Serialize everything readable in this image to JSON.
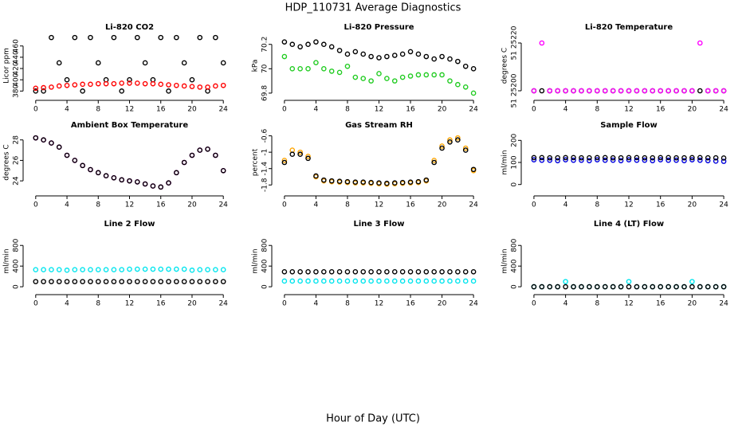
{
  "title": "HDP_110731  Average Diagnostics",
  "xlabel": "Hour of Day (UTC)",
  "chart_data": [
    {
      "type": "scatter",
      "title": "Li-820 CO2",
      "ylabel": "Licor ppm",
      "x": [
        0,
        1,
        2,
        3,
        4,
        5,
        6,
        7,
        8,
        9,
        10,
        11,
        12,
        13,
        14,
        15,
        16,
        17,
        18,
        19,
        20,
        21,
        22,
        23,
        24
      ],
      "xlim": [
        -1,
        25
      ],
      "xticks": [
        0,
        4,
        8,
        12,
        16,
        20,
        24
      ],
      "ylim": [
        372,
        478
      ],
      "yticks": [
        380,
        400,
        420,
        440,
        460
      ],
      "series": [
        {
          "color": "#000000",
          "values": [
            380,
            380,
            475,
            430,
            400,
            475,
            380,
            475,
            430,
            400,
            475,
            380,
            400,
            475,
            430,
            400,
            475,
            380,
            475,
            430,
            400,
            475,
            380,
            475,
            430
          ]
        },
        {
          "color": "#ff0000",
          "values": [
            385,
            386,
            387,
            389,
            390,
            391,
            392,
            392,
            393,
            393,
            393,
            394,
            394,
            394,
            393,
            393,
            392,
            391,
            390,
            389,
            388,
            387,
            387,
            389,
            390
          ]
        }
      ]
    },
    {
      "type": "scatter",
      "title": "Li-820 Pressure",
      "ylabel": "kPa",
      "x": [
        0,
        1,
        2,
        3,
        4,
        5,
        6,
        7,
        8,
        9,
        10,
        11,
        12,
        13,
        14,
        15,
        16,
        17,
        18,
        19,
        20,
        21,
        22,
        23,
        24
      ],
      "xlim": [
        -1,
        25
      ],
      "xticks": [
        0,
        4,
        8,
        12,
        16,
        20,
        24
      ],
      "ylim": [
        69.78,
        70.27
      ],
      "yticks": [
        69.8,
        70.0,
        70.2
      ],
      "series": [
        {
          "color": "#000000",
          "values": [
            70.22,
            70.2,
            70.18,
            70.2,
            70.22,
            70.2,
            70.18,
            70.15,
            70.12,
            70.14,
            70.12,
            70.1,
            70.09,
            70.1,
            70.11,
            70.12,
            70.14,
            70.12,
            70.1,
            70.08,
            70.1,
            70.08,
            70.06,
            70.02,
            70.0
          ]
        },
        {
          "color": "#22cc22",
          "values": [
            70.1,
            70.0,
            70.0,
            70.0,
            70.05,
            70.0,
            69.98,
            69.97,
            70.02,
            69.93,
            69.92,
            69.9,
            69.96,
            69.92,
            69.9,
            69.93,
            69.94,
            69.95,
            69.95,
            69.95,
            69.95,
            69.9,
            69.87,
            69.85,
            69.8
          ]
        }
      ]
    },
    {
      "type": "scatter",
      "title": "Li-820 Temperature",
      "ylabel": "degrees C",
      "x": [
        0,
        1,
        2,
        3,
        4,
        5,
        6,
        7,
        8,
        9,
        10,
        11,
        12,
        13,
        14,
        15,
        16,
        17,
        18,
        19,
        20,
        21,
        22,
        23,
        24
      ],
      "xlim": [
        -1,
        25
      ],
      "xticks": [
        0,
        4,
        8,
        12,
        16,
        20,
        24
      ],
      "ylim": [
        51.25198,
        51.25223
      ],
      "yticks": [
        {
          "value": 51.252,
          "label": "51 25200"
        },
        {
          "value": 51.2522,
          "label": "51 25220"
        }
      ],
      "series": [
        {
          "color": "#000000",
          "values": [
            51.252,
            51.252,
            51.252,
            51.252,
            51.252,
            51.252,
            51.252,
            51.252,
            51.252,
            51.252,
            51.252,
            51.252,
            51.252,
            51.252,
            51.252,
            51.252,
            51.252,
            51.252,
            51.252,
            51.252,
            51.252,
            51.252,
            51.252,
            51.252,
            51.252
          ]
        },
        {
          "color": "#ff00ff",
          "values": [
            51.252,
            51.2522,
            51.252,
            51.252,
            51.252,
            51.252,
            51.252,
            51.252,
            51.252,
            51.252,
            51.252,
            51.252,
            51.252,
            51.252,
            51.252,
            51.252,
            51.252,
            51.252,
            51.252,
            51.252,
            51.252,
            51.2522,
            51.252,
            51.252,
            51.252
          ]
        }
      ]
    },
    {
      "type": "scatter",
      "title": "Ambient Box Temperature",
      "ylabel": "degrees C",
      "x": [
        0,
        1,
        2,
        3,
        4,
        5,
        6,
        7,
        8,
        9,
        10,
        11,
        12,
        13,
        14,
        15,
        16,
        17,
        18,
        19,
        20,
        21,
        22,
        23,
        24
      ],
      "xlim": [
        -1,
        25
      ],
      "xticks": [
        0,
        4,
        8,
        12,
        16,
        20,
        24
      ],
      "ylim": [
        23,
        28.6
      ],
      "yticks": [
        24,
        26,
        28
      ],
      "series": [
        {
          "color": "#ff00ff",
          "values": [
            28.2,
            28,
            27.7,
            27.3,
            26.5,
            26,
            25.5,
            25.1,
            24.8,
            24.5,
            24.3,
            24.1,
            24,
            23.9,
            23.7,
            23.5,
            23.4,
            23.8,
            24.8,
            25.8,
            26.5,
            27,
            27.1,
            26.5,
            25
          ]
        },
        {
          "color": "#000000",
          "values": [
            28.2,
            28,
            27.7,
            27.3,
            26.5,
            26,
            25.5,
            25.1,
            24.8,
            24.5,
            24.3,
            24.1,
            24,
            23.9,
            23.7,
            23.5,
            23.4,
            23.8,
            24.8,
            25.8,
            26.5,
            27,
            27.1,
            26.5,
            25
          ]
        }
      ]
    },
    {
      "type": "scatter",
      "title": "Gas Stream RH",
      "ylabel": "percent",
      "x": [
        0,
        1,
        2,
        3,
        4,
        5,
        6,
        7,
        8,
        9,
        10,
        11,
        12,
        13,
        14,
        15,
        16,
        17,
        18,
        19,
        20,
        21,
        22,
        23,
        24
      ],
      "xlim": [
        -1,
        25
      ],
      "xticks": [
        0,
        4,
        8,
        12,
        16,
        20,
        24
      ],
      "ylim": [
        -1.95,
        -0.55
      ],
      "yticks": [
        -1.8,
        -1.4,
        -1.0,
        -0.6
      ],
      "series": [
        {
          "color": "#ffa500",
          "values": [
            -1.2,
            -0.95,
            -1.0,
            -1.1,
            -1.6,
            -1.7,
            -1.72,
            -1.73,
            -1.74,
            -1.75,
            -1.75,
            -1.76,
            -1.77,
            -1.78,
            -1.77,
            -1.76,
            -1.75,
            -1.74,
            -1.7,
            -1.2,
            -0.85,
            -0.7,
            -0.65,
            -0.9,
            -1.45
          ]
        },
        {
          "color": "#000000",
          "values": [
            -1.25,
            -1.05,
            -1.05,
            -1.15,
            -1.58,
            -1.68,
            -1.7,
            -1.71,
            -1.72,
            -1.73,
            -1.73,
            -1.74,
            -1.75,
            -1.76,
            -1.75,
            -1.74,
            -1.73,
            -1.72,
            -1.68,
            -1.25,
            -0.9,
            -0.75,
            -0.7,
            -0.95,
            -1.42
          ]
        }
      ]
    },
    {
      "type": "scatter",
      "title": "Sample Flow",
      "ylabel": "ml/min",
      "x": [
        0,
        1,
        2,
        3,
        4,
        5,
        6,
        7,
        8,
        9,
        10,
        11,
        12,
        13,
        14,
        15,
        16,
        17,
        18,
        19,
        20,
        21,
        22,
        23,
        24
      ],
      "xlim": [
        -1,
        25
      ],
      "xticks": [
        0,
        4,
        8,
        12,
        16,
        20,
        24
      ],
      "ylim": [
        -30,
        230
      ],
      "yticks": [
        0,
        100,
        200
      ],
      "series": [
        {
          "color": "#0000dd",
          "values": [
            112,
            110,
            110,
            108,
            112,
            110,
            110,
            108,
            112,
            110,
            110,
            108,
            112,
            110,
            110,
            108,
            112,
            110,
            110,
            108,
            112,
            110,
            108,
            106,
            105
          ]
        },
        {
          "color": "#000000",
          "values": [
            122,
            122,
            121,
            121,
            122,
            122,
            121,
            121,
            122,
            122,
            121,
            121,
            122,
            122,
            121,
            121,
            122,
            122,
            121,
            121,
            122,
            122,
            121,
            121,
            120
          ]
        }
      ]
    },
    {
      "type": "scatter",
      "title": "Line 2 Flow",
      "ylabel": "ml/min",
      "x": [
        0,
        1,
        2,
        3,
        4,
        5,
        6,
        7,
        8,
        9,
        10,
        11,
        12,
        13,
        14,
        15,
        16,
        17,
        18,
        19,
        20,
        21,
        22,
        23,
        24
      ],
      "xlim": [
        -1,
        25
      ],
      "xticks": [
        0,
        4,
        8,
        12,
        16,
        20,
        24
      ],
      "ylim": [
        -60,
        1050
      ],
      "yticks": [
        0,
        400,
        800
      ],
      "series": [
        {
          "color": "#00e5ee",
          "values": [
            330,
            330,
            330,
            330,
            320,
            330,
            330,
            330,
            330,
            330,
            330,
            330,
            340,
            340,
            340,
            340,
            340,
            340,
            340,
            340,
            320,
            330,
            330,
            330,
            330
          ]
        },
        {
          "color": "#000000",
          "values": [
            100,
            100,
            100,
            100,
            100,
            100,
            100,
            100,
            100,
            100,
            100,
            100,
            100,
            100,
            100,
            100,
            100,
            100,
            100,
            100,
            100,
            100,
            100,
            100,
            100
          ]
        }
      ]
    },
    {
      "type": "scatter",
      "title": "Line 3 Flow",
      "ylabel": "ml/min",
      "x": [
        0,
        1,
        2,
        3,
        4,
        5,
        6,
        7,
        8,
        9,
        10,
        11,
        12,
        13,
        14,
        15,
        16,
        17,
        18,
        19,
        20,
        21,
        22,
        23,
        24
      ],
      "xlim": [
        -1,
        25
      ],
      "xticks": [
        0,
        4,
        8,
        12,
        16,
        20,
        24
      ],
      "ylim": [
        -60,
        1050
      ],
      "yticks": [
        0,
        400,
        800
      ],
      "series": [
        {
          "color": "#00e5ee",
          "values": [
            110,
            110,
            110,
            110,
            110,
            110,
            110,
            110,
            110,
            110,
            110,
            110,
            110,
            110,
            110,
            110,
            110,
            110,
            110,
            110,
            110,
            110,
            110,
            110,
            110
          ]
        },
        {
          "color": "#000000",
          "values": [
            290,
            290,
            290,
            290,
            290,
            290,
            290,
            290,
            290,
            290,
            290,
            290,
            290,
            290,
            290,
            290,
            290,
            290,
            290,
            290,
            290,
            290,
            290,
            290,
            290
          ]
        }
      ]
    },
    {
      "type": "scatter",
      "title": "Line 4 (LT) Flow",
      "ylabel": "ml/min",
      "x": [
        0,
        1,
        2,
        3,
        4,
        5,
        6,
        7,
        8,
        9,
        10,
        11,
        12,
        13,
        14,
        15,
        16,
        17,
        18,
        19,
        20,
        21,
        22,
        23,
        24
      ],
      "xlim": [
        -1,
        25
      ],
      "xticks": [
        0,
        4,
        8,
        12,
        16,
        20,
        24
      ],
      "ylim": [
        -60,
        1050
      ],
      "yticks": [
        0,
        400,
        800
      ],
      "series": [
        {
          "color": "#00e5ee",
          "values": [
            0,
            0,
            0,
            0,
            100,
            0,
            0,
            0,
            0,
            0,
            0,
            0,
            100,
            0,
            0,
            0,
            0,
            0,
            0,
            0,
            100,
            0,
            0,
            0,
            0
          ]
        },
        {
          "color": "#000000",
          "values": [
            0,
            0,
            0,
            0,
            0,
            0,
            0,
            0,
            0,
            0,
            0,
            0,
            0,
            0,
            0,
            0,
            0,
            0,
            0,
            0,
            0,
            0,
            0,
            0,
            0
          ]
        }
      ]
    }
  ]
}
